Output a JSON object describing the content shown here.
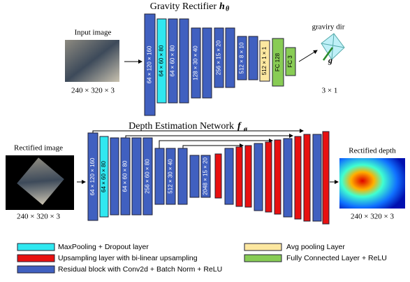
{
  "gravity_network": {
    "title": "Gravity Rectifier",
    "symbol": "h",
    "subscript": "θ",
    "input_label": "Input image",
    "input_size": "240 × 320 × 3",
    "output_label": "graviry dir",
    "output_symbol": "g",
    "output_size": "3 × 1",
    "layers": [
      "64 × 120 × 160",
      "64 × 60 × 80",
      "64 × 60 × 80",
      "128 × 30 × 40",
      "256 × 15 × 20",
      "512 × 8 × 10",
      "512 × 1 × 1",
      "FC 128",
      "FC 3"
    ]
  },
  "depth_network": {
    "title": "Depth Estimation Network",
    "symbol": "f",
    "subscript": "ø",
    "input_label": "Rectified image",
    "input_size": "240 × 320 × 3",
    "output_label": "Rectified depth",
    "output_size": "240 × 320 × 3",
    "layers": [
      "64 × 120 × 160",
      "64 × 60 × 80",
      "64 × 60 × 80",
      "256 × 60 × 80",
      "512 × 30 × 40",
      "2048 × 15 × 20"
    ]
  },
  "legend": [
    "MaxPooling + Dropout layer",
    "Upsampling layer with bi-linear upsampling",
    "Residual block with Conv2d + Batch Norm + ReLU",
    "Avg pooling Layer",
    "Fully Connected Layer + ReLU"
  ]
}
